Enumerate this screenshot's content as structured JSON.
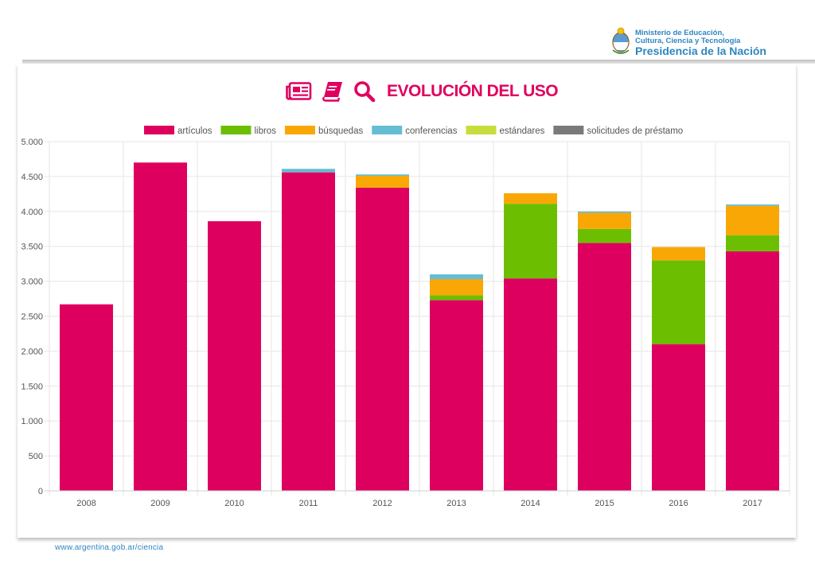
{
  "header": {
    "ministry_line1": "Ministerio de Educación,",
    "ministry_line2": "Cultura, Ciencia y Tecnología",
    "ministry_line3": "Presidencia de la Nación"
  },
  "title": "EVOLUCIÓN DEL USO",
  "icons": [
    "newspaper-icon",
    "book-icon",
    "search-icon"
  ],
  "footer": {
    "url": "www.argentina.gob.ar/ciencia"
  },
  "chart_data": {
    "type": "bar",
    "stacked": true,
    "categories": [
      "2008",
      "2009",
      "2010",
      "2011",
      "2012",
      "2013",
      "2014",
      "2015",
      "2016",
      "2017"
    ],
    "series": [
      {
        "name": "artículos",
        "color": "#de005e",
        "values": [
          2670,
          4700,
          3860,
          4560,
          4340,
          2730,
          3040,
          3550,
          2100,
          3430
        ]
      },
      {
        "name": "libros",
        "color": "#6bbf00",
        "values": [
          0,
          0,
          0,
          0,
          0,
          70,
          1070,
          200,
          1200,
          230
        ]
      },
      {
        "name": "búsquedas",
        "color": "#f9a705",
        "values": [
          0,
          0,
          0,
          0,
          170,
          230,
          150,
          230,
          190,
          420
        ]
      },
      {
        "name": "conferencias",
        "color": "#65bdd3",
        "values": [
          0,
          0,
          0,
          50,
          20,
          70,
          0,
          20,
          0,
          20
        ]
      },
      {
        "name": "estándares",
        "color": "#c8dd3b",
        "values": [
          0,
          0,
          0,
          0,
          0,
          0,
          0,
          0,
          0,
          0
        ]
      },
      {
        "name": "solicitudes de préstamo",
        "color": "#7a7a7a",
        "values": [
          0,
          0,
          0,
          0,
          0,
          0,
          0,
          0,
          0,
          0
        ]
      }
    ],
    "ylim": [
      0,
      5000
    ],
    "yticks": [
      0,
      500,
      1000,
      1500,
      2000,
      2500,
      3000,
      3500,
      4000,
      4500,
      5000
    ],
    "ytick_labels": [
      "0",
      "500",
      "1.000",
      "1.500",
      "2.000",
      "2.500",
      "3.000",
      "3.500",
      "4.000",
      "4.500",
      "5.000"
    ],
    "legend_position": "top",
    "grid": true
  }
}
